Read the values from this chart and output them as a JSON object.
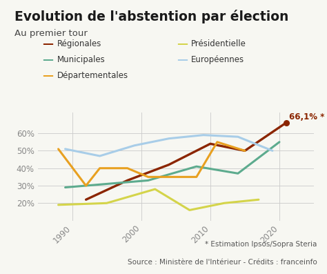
{
  "title": "Evolution de l'abstention par élection",
  "subtitle": "Au premier tour",
  "background_color": "#f7f7f2",
  "plot_bg_color": "#f7f7f2",
  "series": {
    "Régionales": {
      "years": [
        1992,
        1998,
        2004,
        2010,
        2015,
        2021
      ],
      "values": [
        22.0,
        33.0,
        42.0,
        54.0,
        50.0,
        66.1
      ],
      "color": "#8B2500",
      "linewidth": 2.4,
      "annotation": "66,1% *",
      "annotate_last": true
    },
    "Municipales": {
      "years": [
        1989,
        1995,
        2001,
        2008,
        2014,
        2020
      ],
      "values": [
        29.0,
        31.0,
        33.0,
        41.0,
        37.0,
        55.0
      ],
      "color": "#5dab8e",
      "linewidth": 2.2
    },
    "Départementales": {
      "years": [
        1988,
        1992,
        1994,
        1998,
        2001,
        2004,
        2008,
        2011,
        2015
      ],
      "values": [
        51.0,
        30.0,
        40.0,
        40.0,
        35.0,
        35.0,
        35.0,
        55.0,
        50.0
      ],
      "color": "#e8a020",
      "linewidth": 2.2
    },
    "Présidentielle": {
      "years": [
        1988,
        1995,
        2002,
        2007,
        2012,
        2017
      ],
      "values": [
        19.0,
        20.0,
        28.0,
        16.0,
        20.0,
        22.0
      ],
      "color": "#d4d44a",
      "linewidth": 2.2
    },
    "Européennes": {
      "years": [
        1989,
        1994,
        1999,
        2004,
        2009,
        2014,
        2019
      ],
      "values": [
        51.0,
        47.0,
        53.0,
        57.0,
        59.0,
        58.0,
        50.0
      ],
      "color": "#a8cde8",
      "linewidth": 2.2
    }
  },
  "xlim": [
    1985,
    2025
  ],
  "ylim": [
    10,
    72
  ],
  "xticks": [
    1990,
    2000,
    2010,
    2020
  ],
  "yticks": [
    20,
    30,
    40,
    50,
    60
  ],
  "grid_color": "#cccccc",
  "annotation_color": "#8B2500",
  "legend_col1": [
    [
      "Régionales",
      "#8B2500"
    ],
    [
      "Municipales",
      "#5dab8e"
    ],
    [
      "Départementales",
      "#e8a020"
    ]
  ],
  "legend_col2": [
    [
      "Présidentielle",
      "#d4d44a"
    ],
    [
      "Européennes",
      "#a8cde8"
    ]
  ],
  "footer1": "* Estimation Ipsos/Sopra Steria",
  "footer2": "Source : Ministère de l'Intérieur - Crédits : franceinfo"
}
